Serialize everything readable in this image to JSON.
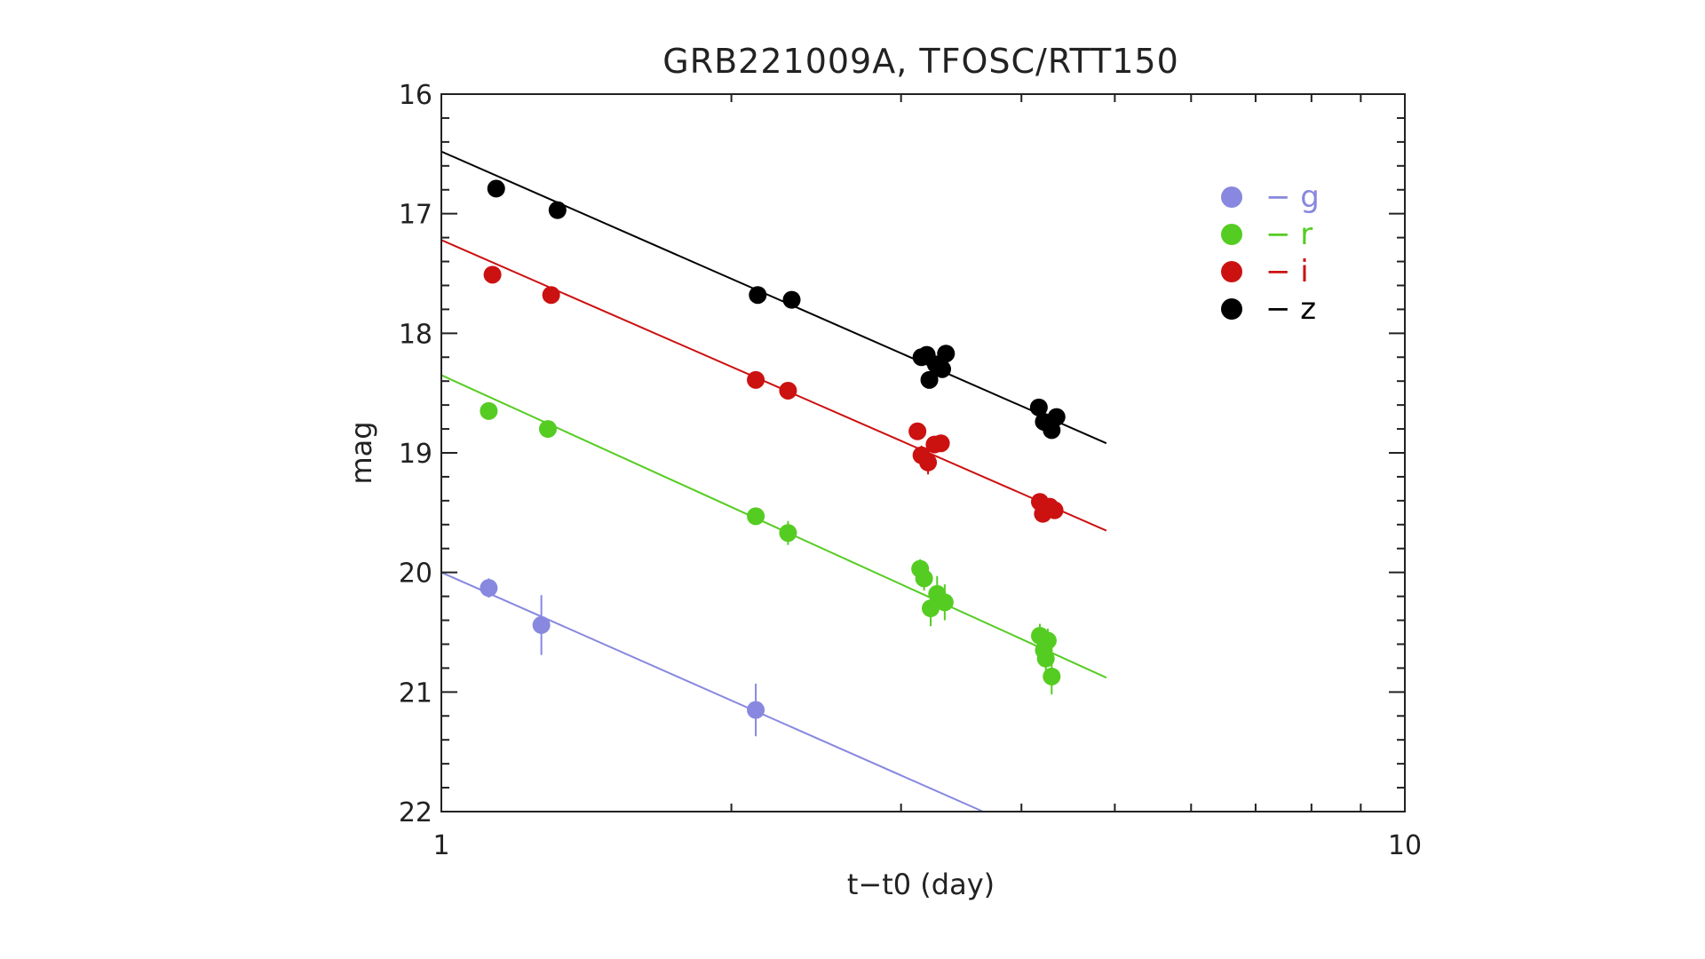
{
  "chart_data": {
    "type": "scatter",
    "title": "GRB221009A, TFOSC/RTT150",
    "xlabel": "t−t0 (day)",
    "ylabel": "mag",
    "xscale": "log",
    "xlim": [
      1,
      10
    ],
    "ylim": [
      22,
      16
    ],
    "y_inverted": true,
    "x_tick_labels": [
      {
        "v": 1,
        "label": "1"
      },
      {
        "v": 10,
        "label": "10"
      }
    ],
    "y_tick_labels": [
      {
        "v": 16,
        "label": "16"
      },
      {
        "v": 17,
        "label": "17"
      },
      {
        "v": 18,
        "label": "18"
      },
      {
        "v": 19,
        "label": "19"
      },
      {
        "v": 20,
        "label": "20"
      },
      {
        "v": 21,
        "label": "21"
      },
      {
        "v": 22,
        "label": "22"
      }
    ],
    "grid": false,
    "legend_position": "top-right",
    "series": [
      {
        "name": "g",
        "legend_label": "− g",
        "color": "#8888e0",
        "points": [
          [
            1.12,
            20.13,
            0.08
          ],
          [
            1.27,
            20.44,
            0.25
          ],
          [
            2.12,
            21.15,
            0.22
          ]
        ],
        "fit": [
          [
            1.0,
            20.0
          ],
          [
            3.65,
            22.0
          ]
        ]
      },
      {
        "name": "r",
        "legend_label": "− r",
        "color": "#55cc22",
        "points": [
          [
            1.12,
            18.65,
            0.04
          ],
          [
            1.29,
            18.8,
            0.05
          ],
          [
            2.12,
            19.53,
            0.05
          ],
          [
            2.29,
            19.67,
            0.1
          ],
          [
            3.14,
            19.97,
            0.08
          ],
          [
            3.17,
            20.05,
            0.1
          ],
          [
            3.22,
            20.3,
            0.15
          ],
          [
            3.27,
            20.18,
            0.15
          ],
          [
            3.33,
            20.25,
            0.15
          ],
          [
            4.18,
            20.53,
            0.1
          ],
          [
            4.22,
            20.65,
            0.1
          ],
          [
            4.26,
            20.57,
            0.1
          ],
          [
            4.24,
            20.72,
            0.12
          ],
          [
            4.3,
            20.87,
            0.15
          ]
        ],
        "fit": [
          [
            1.0,
            18.35
          ],
          [
            4.9,
            20.88
          ]
        ]
      },
      {
        "name": "i",
        "legend_label": "− i",
        "color": "#cc1111",
        "points": [
          [
            1.13,
            17.51,
            0.03
          ],
          [
            1.3,
            17.68,
            0.03
          ],
          [
            2.12,
            18.39,
            0.03
          ],
          [
            2.29,
            18.48,
            0.03
          ],
          [
            3.12,
            18.82,
            0.05
          ],
          [
            3.15,
            19.02,
            0.08
          ],
          [
            3.2,
            19.08,
            0.1
          ],
          [
            3.25,
            18.93,
            0.05
          ],
          [
            3.3,
            18.92,
            0.05
          ],
          [
            4.18,
            19.41,
            0.05
          ],
          [
            4.21,
            19.51,
            0.05
          ],
          [
            4.28,
            19.45,
            0.05
          ],
          [
            4.33,
            19.48,
            0.05
          ]
        ],
        "fit": [
          [
            1.0,
            17.22
          ],
          [
            4.9,
            19.65
          ]
        ]
      },
      {
        "name": "z",
        "legend_label": "− z",
        "color": "#000000",
        "points": [
          [
            1.14,
            16.79,
            0.03
          ],
          [
            1.32,
            16.97,
            0.03
          ],
          [
            2.13,
            17.68,
            0.03
          ],
          [
            2.31,
            17.72,
            0.03
          ],
          [
            3.15,
            18.2,
            0.05
          ],
          [
            3.19,
            18.18,
            0.05
          ],
          [
            3.21,
            18.39,
            0.05
          ],
          [
            3.26,
            18.26,
            0.05
          ],
          [
            3.31,
            18.3,
            0.05
          ],
          [
            3.34,
            18.17,
            0.05
          ],
          [
            4.17,
            18.62,
            0.05
          ],
          [
            4.22,
            18.74,
            0.05
          ],
          [
            4.3,
            18.81,
            0.05
          ],
          [
            4.35,
            18.7,
            0.05
          ]
        ],
        "fit": [
          [
            1.0,
            16.48
          ],
          [
            4.9,
            18.92
          ]
        ]
      }
    ]
  }
}
